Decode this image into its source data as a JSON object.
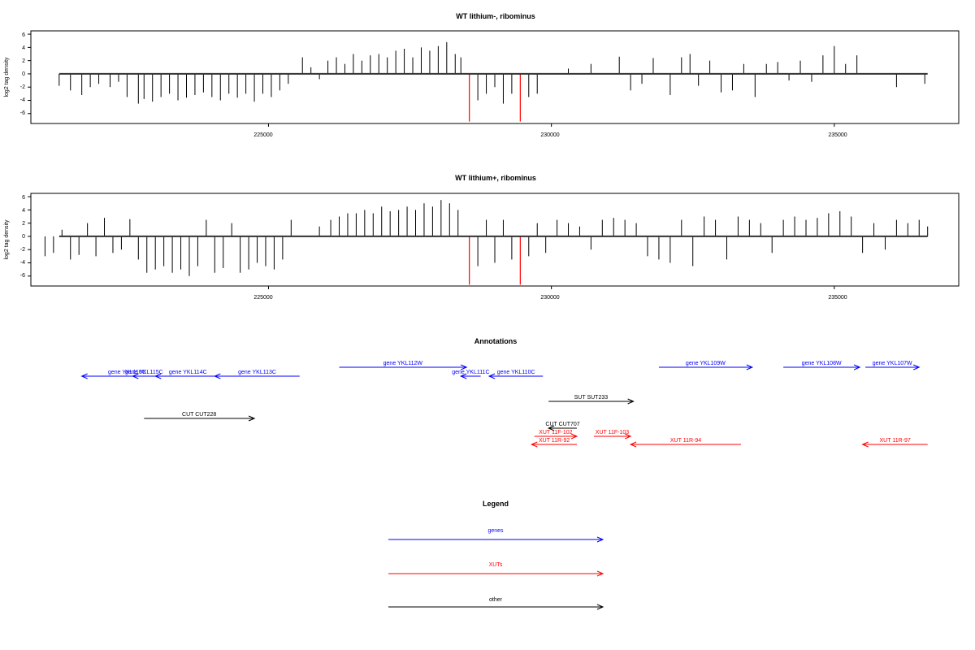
{
  "panels": [
    {
      "title": "WT lithium-, ribominus",
      "ylabel": "log2 tag density",
      "yticks": [
        "6",
        "4",
        "2",
        "0",
        "-2",
        "-4",
        "-6"
      ],
      "xticks": [
        "225000",
        "230000",
        "235000"
      ]
    },
    {
      "title": "WT lithium+, ribominus",
      "ylabel": "log2 tag density",
      "yticks": [
        "6",
        "4",
        "2",
        "0",
        "-2",
        "-4",
        "-6"
      ],
      "xticks": [
        "225000",
        "230000",
        "235000"
      ]
    }
  ],
  "annotations": {
    "title": "Annotations",
    "features": [
      {
        "label": "gene YKL116C",
        "start": 221700,
        "end": 223300,
        "strand": "-",
        "kind": "gene",
        "row": "upper"
      },
      {
        "label": "gene YKL115C",
        "start": 222600,
        "end": 223000,
        "strand": "-",
        "kind": "gene",
        "row": "upper"
      },
      {
        "label": "gene YKL114C",
        "start": 223000,
        "end": 224150,
        "strand": "-",
        "kind": "gene",
        "row": "upper"
      },
      {
        "label": "gene YKL113C",
        "start": 224050,
        "end": 225550,
        "strand": "-",
        "kind": "gene",
        "row": "upper"
      },
      {
        "label": "gene YKL112W",
        "start": 226250,
        "end": 228500,
        "strand": "+",
        "kind": "gene",
        "row": "upper-high"
      },
      {
        "label": "gene YKL111C",
        "start": 228400,
        "end": 228750,
        "strand": "-",
        "kind": "gene",
        "row": "upper"
      },
      {
        "label": "gene YKL110C",
        "start": 228900,
        "end": 229850,
        "strand": "-",
        "kind": "gene",
        "row": "upper"
      },
      {
        "label": "gene YKL109W",
        "start": 231900,
        "end": 233550,
        "strand": "+",
        "kind": "gene",
        "row": "upper-high"
      },
      {
        "label": "gene YKL108W",
        "start": 234100,
        "end": 235450,
        "strand": "+",
        "kind": "gene",
        "row": "upper-high"
      },
      {
        "label": "gene YKL107W",
        "start": 235550,
        "end": 236500,
        "strand": "+",
        "kind": "gene",
        "row": "upper-high"
      },
      {
        "label": "SUT SUT233",
        "start": 229950,
        "end": 231450,
        "strand": "+",
        "kind": "other",
        "row": "mid"
      },
      {
        "label": "CUT CUT228",
        "start": 222800,
        "end": 224750,
        "strand": "+",
        "kind": "other",
        "row": "mid-low"
      },
      {
        "label": "CUT CUT707",
        "start": 229950,
        "end": 230450,
        "strand": "-",
        "kind": "other",
        "row": "low-1"
      },
      {
        "label": "XUT 11F-102",
        "start": 229700,
        "end": 230450,
        "strand": "+",
        "kind": "xut",
        "row": "low-2"
      },
      {
        "label": "XUT 11F-103",
        "start": 230750,
        "end": 231400,
        "strand": "+",
        "kind": "xut",
        "row": "low-2"
      },
      {
        "label": "XUT 11R-92",
        "start": 229650,
        "end": 230450,
        "strand": "-",
        "kind": "xut",
        "row": "low-3"
      },
      {
        "label": "XUT 11R-94",
        "start": 231400,
        "end": 233350,
        "strand": "-",
        "kind": "xut",
        "row": "low-3"
      },
      {
        "label": "XUT 11R-97",
        "start": 235500,
        "end": 236650,
        "strand": "-",
        "kind": "xut",
        "row": "low-3"
      }
    ]
  },
  "legend": {
    "title": "Legend",
    "items": [
      {
        "label": "genes",
        "color": "#0000ff"
      },
      {
        "label": "XUTs",
        "color": "#ff0000"
      },
      {
        "label": "other",
        "color": "#000000"
      }
    ]
  },
  "colors": {
    "gene": "#0000ff",
    "xut": "#ff0000",
    "other": "#000000",
    "highlight": "#ff0000"
  },
  "chart_data": [
    {
      "type": "bar",
      "title": "WT lithium-, ribominus",
      "xlabel": "",
      "ylabel": "log2 tag density",
      "xlim": [
        220800,
        237200
      ],
      "ylim": [
        -7.5,
        6.5
      ],
      "grid": false,
      "highlight_positions": [
        228550,
        229450
      ],
      "x": [
        221300,
        221500,
        221700,
        221850,
        222000,
        222200,
        222350,
        222500,
        222700,
        222800,
        222950,
        223100,
        223250,
        223400,
        223550,
        223700,
        223850,
        224000,
        224150,
        224300,
        224450,
        224600,
        224750,
        224900,
        225050,
        225200,
        225350,
        225600,
        225750,
        225900,
        226050,
        226200,
        226350,
        226500,
        226650,
        226800,
        226950,
        227100,
        227250,
        227400,
        227550,
        227700,
        227850,
        228000,
        228150,
        228300,
        228400,
        228550,
        228700,
        228850,
        229000,
        229150,
        229300,
        229450,
        229600,
        229750,
        230300,
        230700,
        231200,
        231400,
        231600,
        231800,
        232100,
        232300,
        232450,
        232600,
        232800,
        233000,
        233200,
        233400,
        233600,
        233800,
        234000,
        234200,
        234400,
        234600,
        234800,
        235000,
        235200,
        235400,
        236100,
        236600
      ],
      "values": [
        -1.8,
        -2.5,
        -3.2,
        -2.0,
        -1.5,
        -2.0,
        -1.2,
        -3.5,
        -4.5,
        -3.8,
        -4.2,
        -3.5,
        -3.0,
        -4.0,
        -3.6,
        -3.2,
        -2.8,
        -3.5,
        -4.0,
        -3.0,
        -3.6,
        -3.0,
        -4.2,
        -3.0,
        -3.5,
        -2.5,
        -1.5,
        2.5,
        1.0,
        -0.8,
        2.0,
        2.5,
        1.5,
        3.0,
        2.0,
        2.8,
        3.0,
        2.5,
        3.5,
        3.8,
        2.5,
        4.0,
        3.5,
        4.2,
        4.8,
        3.0,
        2.5,
        -7.2,
        -4.0,
        -3.0,
        -2.0,
        -4.5,
        -3.0,
        -7.2,
        -3.5,
        -3.0,
        0.8,
        1.5,
        2.6,
        -2.5,
        -1.5,
        2.4,
        -3.2,
        2.5,
        3.0,
        -1.8,
        2.0,
        -2.8,
        -2.5,
        1.5,
        -3.5,
        1.5,
        1.8,
        -1.0,
        2.0,
        -1.2,
        2.8,
        4.2,
        1.5,
        2.8,
        -2.0,
        -1.5
      ]
    },
    {
      "type": "bar",
      "title": "WT lithium+, ribominus",
      "xlabel": "",
      "ylabel": "log2 tag density",
      "xlim": [
        220800,
        237200
      ],
      "ylim": [
        -7.5,
        6.5
      ],
      "grid": false,
      "highlight_positions": [
        228550,
        229450
      ],
      "x": [
        221050,
        221200,
        221350,
        221500,
        221650,
        221800,
        221950,
        222100,
        222250,
        222400,
        222550,
        222700,
        222850,
        223000,
        223150,
        223300,
        223450,
        223600,
        223750,
        223900,
        224050,
        224200,
        224350,
        224500,
        224650,
        224800,
        224950,
        225100,
        225250,
        225400,
        225900,
        226100,
        226250,
        226400,
        226550,
        226700,
        226850,
        227000,
        227150,
        227300,
        227450,
        227600,
        227750,
        227900,
        228050,
        228200,
        228350,
        228550,
        228700,
        228850,
        229000,
        229150,
        229300,
        229450,
        229600,
        229750,
        229900,
        230100,
        230300,
        230500,
        230700,
        230900,
        231100,
        231300,
        231500,
        231700,
        231900,
        232100,
        232300,
        232500,
        232700,
        232900,
        233100,
        233300,
        233500,
        233700,
        233900,
        234100,
        234300,
        234500,
        234700,
        234900,
        235100,
        235300,
        235500,
        235700,
        235900,
        236100,
        236300,
        236500,
        236650
      ],
      "values": [
        -3.0,
        -2.5,
        1.0,
        -3.5,
        -2.8,
        2.0,
        -3.0,
        2.8,
        -2.5,
        -2.0,
        2.6,
        -3.5,
        -5.5,
        -5.0,
        -4.5,
        -5.5,
        -5.0,
        -6.0,
        -4.5,
        2.5,
        -5.5,
        -4.8,
        2.0,
        -5.5,
        -5.0,
        -4.0,
        -4.5,
        -5.0,
        -3.5,
        2.5,
        1.5,
        2.5,
        3.0,
        3.5,
        3.5,
        4.0,
        3.5,
        4.5,
        3.8,
        4.0,
        4.5,
        4.0,
        5.0,
        4.5,
        5.5,
        5.0,
        4.0,
        -7.3,
        -4.5,
        2.5,
        -4.0,
        2.5,
        -3.5,
        -7.3,
        -3.0,
        2.0,
        -2.5,
        2.5,
        2.0,
        1.5,
        -2.0,
        2.5,
        2.8,
        2.5,
        2.0,
        -3.0,
        -3.5,
        -4.0,
        2.5,
        -4.5,
        3.0,
        2.5,
        -3.5,
        3.0,
        2.5,
        2.0,
        -2.5,
        2.5,
        3.0,
        2.5,
        2.8,
        3.5,
        3.8,
        3.0,
        -2.5,
        2.0,
        -2.0,
        2.5,
        2.0,
        2.5,
        1.5
      ]
    }
  ]
}
